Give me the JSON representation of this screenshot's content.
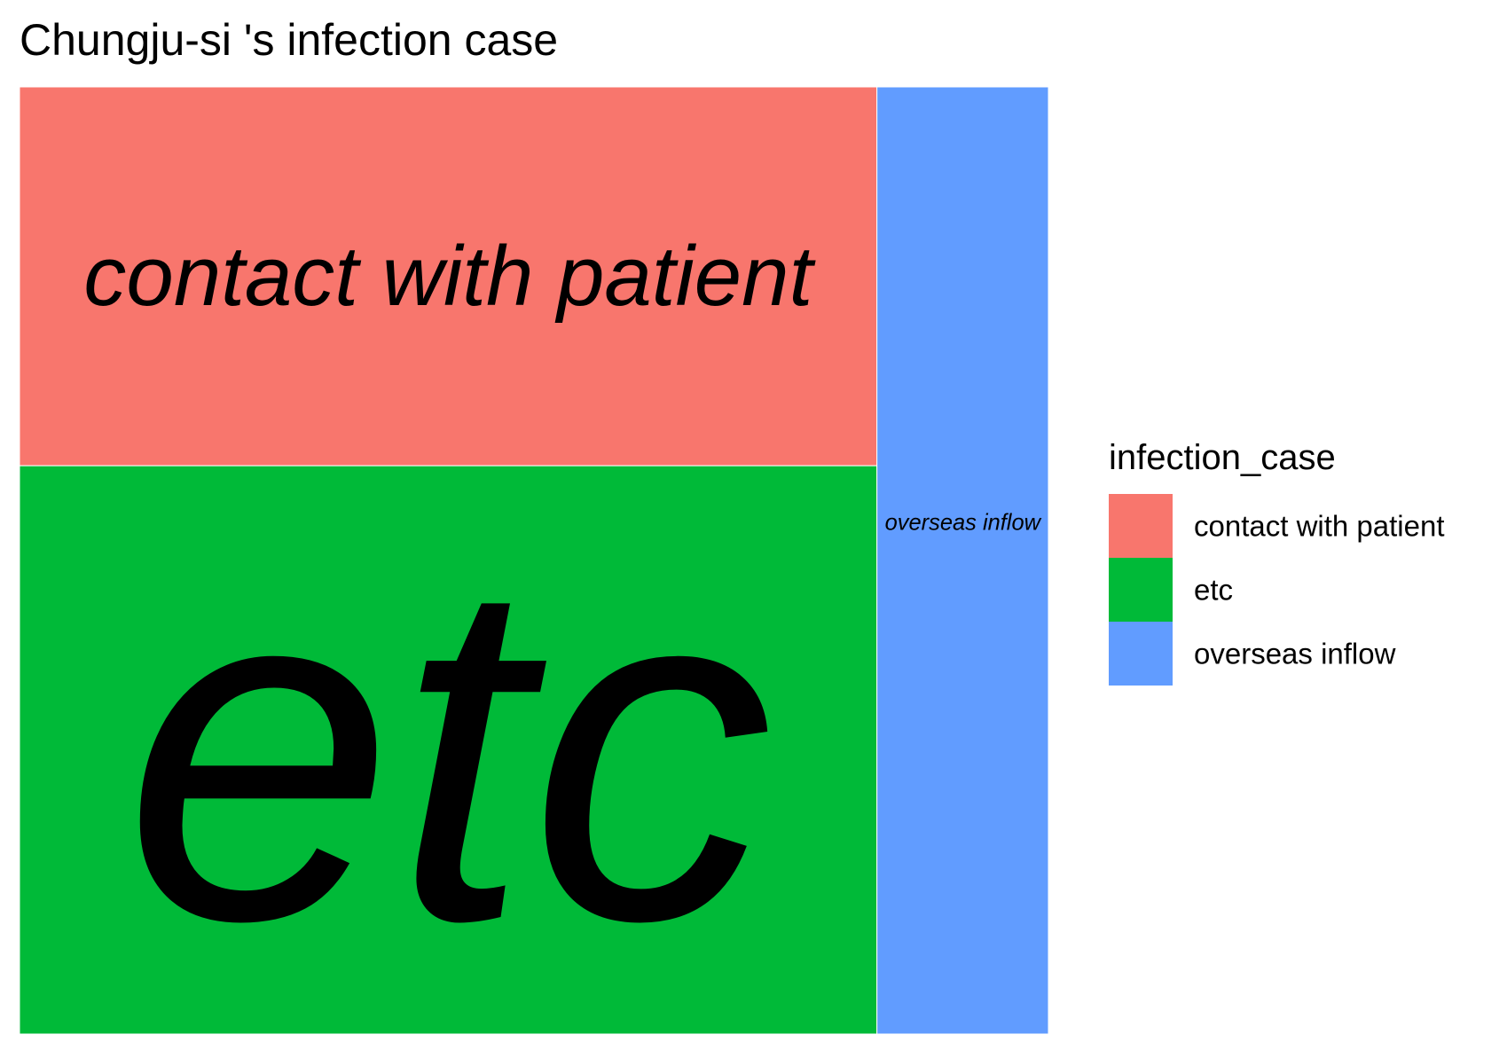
{
  "chart_data": {
    "type": "treemap",
    "title": "Chungju-si 's infection case",
    "legend": {
      "title": "infection_case",
      "placement": "right"
    },
    "tiles": [
      {
        "name": "contact with patient",
        "value": 2,
        "color": "#F8766D"
      },
      {
        "name": "etc",
        "value": 3,
        "color": "#00BA38"
      },
      {
        "name": "overseas inflow",
        "value": 1,
        "color": "#619CFF"
      }
    ]
  }
}
